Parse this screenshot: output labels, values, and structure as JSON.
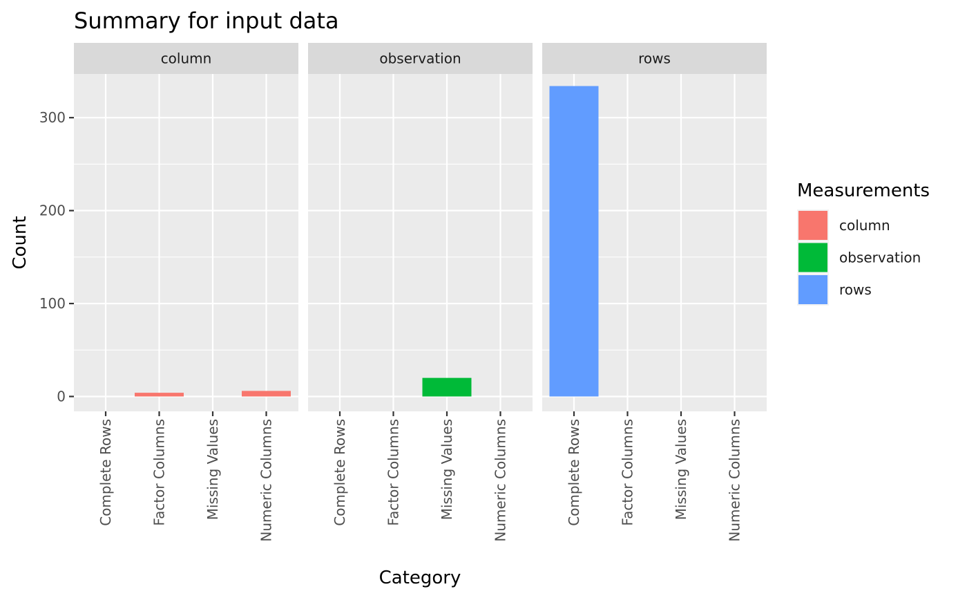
{
  "chart_data": {
    "type": "bar",
    "title": "Summary for input data",
    "xlabel": "Category",
    "ylabel": "Count",
    "ylim": [
      -16,
      347
    ],
    "yticks": [
      0,
      100,
      200,
      300
    ],
    "ytick_labels": [
      "0",
      "100",
      "200",
      "300"
    ],
    "categories": [
      "Complete Rows",
      "Factor Columns",
      "Missing Values",
      "Numeric Columns"
    ],
    "grid": true,
    "legend": {
      "title": "Measurements",
      "position": "right",
      "entries": [
        {
          "name": "column",
          "color": "#F8766D"
        },
        {
          "name": "observation",
          "color": "#00BA38"
        },
        {
          "name": "rows",
          "color": "#619CFF"
        }
      ]
    },
    "facets": [
      {
        "label": "column",
        "color": "#F8766D",
        "values": [
          0,
          4,
          0,
          6
        ]
      },
      {
        "label": "observation",
        "color": "#00BA38",
        "values": [
          0,
          0,
          20,
          0
        ]
      },
      {
        "label": "rows",
        "color": "#619CFF",
        "values": [
          334,
          0,
          0,
          0
        ]
      }
    ]
  }
}
